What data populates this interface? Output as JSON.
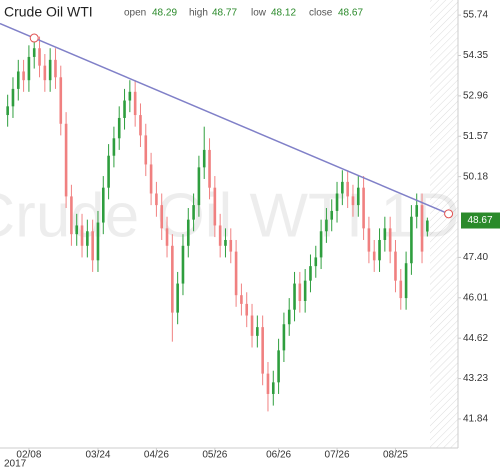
{
  "chart_data": {
    "type": "candlestick",
    "title": "Crude Oil WTI",
    "watermark": "Crude Oil WTI 1D",
    "year_label": "2017",
    "ohlc_labels": {
      "open": "open",
      "high": "high",
      "low": "low",
      "close": "close"
    },
    "up_color": "#2e9e3e",
    "down_color": "#f08080",
    "last_price_color": "#2a8a2a",
    "categories": [
      null,
      null,
      null,
      null,
      "02/08",
      null,
      null,
      null,
      null,
      null,
      null,
      null,
      null,
      null,
      null,
      null,
      null,
      "03/24",
      null,
      null,
      null,
      null,
      null,
      null,
      null,
      null,
      null,
      null,
      "04/26",
      null,
      null,
      null,
      null,
      null,
      null,
      null,
      null,
      null,
      null,
      "05/26",
      null,
      null,
      null,
      null,
      null,
      null,
      null,
      null,
      null,
      null,
      null,
      "06/26",
      null,
      null,
      null,
      null,
      null,
      null,
      null,
      null,
      null,
      null,
      "07/26",
      null,
      null,
      null,
      null,
      null,
      null,
      null,
      null,
      null,
      null,
      "08/25",
      null,
      null,
      null,
      null,
      null,
      null
    ],
    "open": [
      52.3,
      52.6,
      53.2,
      53.8,
      53.5,
      54.3,
      54.6,
      54.0,
      53.5,
      54.2,
      53.6,
      52.0,
      49.5,
      48.2,
      48.5,
      47.8,
      48.3,
      47.3,
      48.6,
      49.8,
      50.9,
      51.5,
      52.2,
      52.8,
      53.1,
      52.3,
      51.6,
      50.6,
      49.6,
      49.2,
      48.4,
      47.8,
      45.5,
      46.5,
      47.8,
      48.7,
      49.2,
      50.5,
      51.1,
      49.8,
      48.5,
      47.8,
      48.0,
      47.6,
      46.1,
      45.8,
      45.4,
      44.7,
      45.0,
      43.4,
      42.7,
      43.1,
      44.2,
      45.1,
      45.6,
      46.5,
      45.9,
      46.6,
      47.1,
      47.4,
      48.3,
      48.7,
      49.0,
      49.6,
      50.0,
      49.5,
      49.2,
      49.8,
      48.4,
      47.6,
      47.3,
      48.0,
      48.4,
      47.6,
      46.6,
      46.0,
      47.2,
      48.8,
      49.2,
      48.29
    ],
    "high": [
      53.0,
      53.6,
      54.2,
      54.2,
      54.7,
      55.0,
      55.0,
      54.4,
      54.6,
      54.6,
      54.0,
      52.4,
      49.9,
      48.9,
      48.9,
      48.7,
      48.7,
      49.0,
      50.2,
      51.3,
      51.9,
      52.6,
      53.2,
      53.5,
      53.5,
      52.7,
      52.0,
      51.0,
      50.0,
      49.6,
      48.8,
      48.2,
      46.9,
      48.2,
      49.1,
      49.6,
      50.9,
      51.9,
      51.5,
      50.2,
      48.9,
      48.4,
      48.4,
      48.0,
      46.5,
      46.2,
      45.8,
      45.4,
      45.4,
      43.8,
      43.5,
      44.6,
      45.5,
      46.0,
      46.9,
      46.9,
      47.0,
      47.5,
      47.8,
      48.7,
      49.1,
      49.4,
      50.0,
      50.4,
      50.4,
      49.9,
      50.2,
      50.2,
      48.8,
      48.0,
      48.4,
      48.8,
      48.8,
      48.0,
      47.0,
      47.6,
      49.2,
      49.6,
      49.6,
      48.77
    ],
    "low": [
      51.9,
      52.2,
      52.8,
      53.1,
      53.1,
      53.9,
      53.6,
      53.1,
      53.1,
      53.2,
      51.6,
      49.1,
      47.8,
      47.8,
      47.4,
      47.4,
      46.9,
      46.9,
      48.2,
      49.4,
      50.5,
      51.1,
      51.8,
      52.4,
      51.9,
      51.2,
      50.2,
      49.2,
      48.8,
      48.0,
      47.4,
      44.5,
      45.1,
      46.1,
      47.4,
      48.3,
      48.8,
      50.1,
      49.4,
      48.1,
      47.4,
      47.4,
      47.2,
      45.7,
      45.4,
      45.0,
      44.3,
      44.3,
      43.0,
      42.1,
      42.3,
      42.7,
      43.8,
      44.7,
      45.2,
      45.5,
      45.5,
      46.2,
      46.7,
      47.0,
      47.9,
      48.3,
      48.6,
      49.2,
      49.1,
      48.8,
      48.8,
      48.0,
      47.2,
      46.9,
      46.9,
      47.6,
      47.2,
      46.2,
      45.6,
      45.6,
      46.8,
      48.4,
      47.2,
      48.12
    ],
    "close": [
      52.6,
      53.2,
      53.8,
      53.5,
      54.3,
      54.6,
      54.0,
      53.5,
      54.2,
      53.6,
      52.0,
      49.5,
      48.2,
      48.5,
      47.8,
      48.3,
      47.3,
      48.6,
      49.8,
      50.9,
      51.5,
      52.2,
      52.8,
      53.1,
      52.3,
      51.6,
      50.6,
      49.6,
      49.2,
      48.4,
      47.8,
      45.5,
      46.5,
      47.8,
      48.7,
      49.2,
      50.5,
      51.1,
      49.8,
      48.5,
      47.8,
      48.0,
      47.6,
      46.1,
      45.8,
      45.4,
      44.7,
      45.0,
      43.4,
      42.7,
      43.1,
      44.2,
      45.1,
      45.6,
      46.5,
      45.9,
      46.6,
      47.1,
      47.4,
      48.3,
      48.7,
      49.0,
      49.6,
      50.0,
      49.5,
      49.2,
      49.8,
      48.4,
      47.6,
      47.3,
      48.0,
      48.4,
      47.6,
      46.6,
      46.0,
      47.2,
      48.8,
      49.2,
      47.6,
      48.67
    ],
    "trendline": {
      "color": "#8080c8",
      "start": {
        "index": 5,
        "value": 54.95
      },
      "end": {
        "index": 83,
        "value": 48.9
      }
    },
    "ylim": [
      40.84,
      56.26
    ],
    "yticks": [
      55.74,
      54.35,
      52.96,
      51.57,
      50.18,
      {
        "value": 47.4,
        "label": "47.40"
      },
      46.01,
      44.62,
      43.23,
      41.84
    ]
  }
}
